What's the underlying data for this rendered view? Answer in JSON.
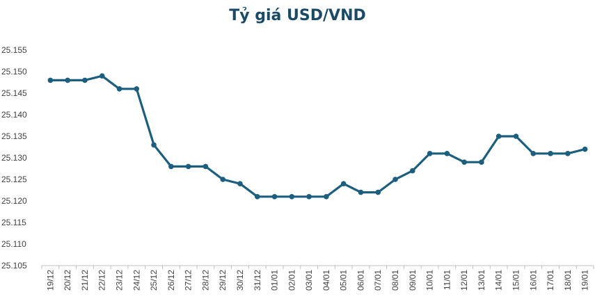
{
  "chart_data": {
    "type": "line",
    "title": "Tỷ giá USD/VND",
    "xlabel": "",
    "ylabel": "",
    "ylim": [
      25.105,
      25.155
    ],
    "yticks": [
      "25.105",
      "25.110",
      "25.115",
      "25.120",
      "25.125",
      "25.130",
      "25.135",
      "25.140",
      "25.145",
      "25.150",
      "25.155"
    ],
    "grid": false,
    "categories": [
      "19/12",
      "20/12",
      "21/12",
      "22/12",
      "23/12",
      "24/12",
      "25/12",
      "26/12",
      "27/12",
      "28/12",
      "29/12",
      "30/12",
      "31/12",
      "01/01",
      "02/01",
      "03/01",
      "04/01",
      "05/01",
      "06/01",
      "07/01",
      "08/01",
      "09/01",
      "10/01",
      "11/01",
      "12/01",
      "13/01",
      "14/01",
      "15/01",
      "16/01",
      "17/01",
      "18/01",
      "19/01"
    ],
    "series": [
      {
        "values": [
          25.148,
          25.148,
          25.148,
          25.149,
          25.146,
          25.146,
          25.133,
          25.128,
          25.128,
          25.128,
          25.125,
          25.124,
          25.121,
          25.121,
          25.121,
          25.121,
          25.121,
          25.124,
          25.122,
          25.122,
          25.125,
          25.127,
          25.131,
          25.131,
          25.129,
          25.129,
          25.135,
          25.135,
          25.131,
          25.131,
          25.131,
          25.132
        ]
      }
    ],
    "colors": {
      "line": "#1b5e7e",
      "axis": "#bfbfbf",
      "title": "#1b4a66"
    }
  }
}
